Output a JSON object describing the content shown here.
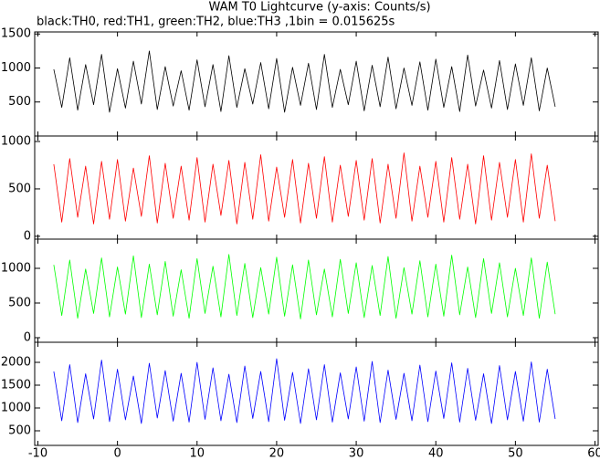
{
  "title": "WAM T0 Lightcurve (y-axis: Counts/s)",
  "subtitle": "black:TH0, red:TH1, green:TH2, blue:TH3 ,1bin = 0.015625s",
  "chart_data": [
    {
      "type": "line",
      "color": "#000000",
      "x": [
        -8,
        -7,
        -6,
        -5,
        -4,
        -3,
        -2,
        -1,
        0,
        1,
        2,
        3,
        4,
        5,
        6,
        7,
        8,
        9,
        10,
        11,
        12,
        13,
        14,
        15,
        16,
        17,
        18,
        19,
        20,
        21,
        22,
        23,
        24,
        25,
        26,
        27,
        28,
        29,
        30,
        31,
        32,
        33,
        34,
        35,
        36,
        37,
        38,
        39,
        40,
        41,
        42,
        43,
        44,
        45,
        46,
        47,
        48,
        49,
        50,
        51,
        52,
        53,
        54,
        55
      ],
      "values": [
        980,
        420,
        1150,
        380,
        1050,
        460,
        1200,
        350,
        990,
        410,
        1100,
        470,
        1250,
        390,
        1020,
        440,
        960,
        380,
        1120,
        430,
        1050,
        360,
        1180,
        420,
        990,
        470,
        1080,
        400,
        1140,
        350,
        1010,
        450,
        1070,
        390,
        1200,
        420,
        980,
        460,
        1100,
        370,
        1040,
        430,
        1160,
        400,
        1000,
        450,
        1090,
        380,
        1130,
        420,
        1020,
        360,
        1190,
        440,
        970,
        410,
        1110,
        390,
        1060,
        450,
        1150,
        370,
        1000,
        430
      ],
      "xlim": [
        -10.4,
        60.4
      ],
      "ylim": [
        0,
        1530
      ],
      "yticks": [
        500,
        1000,
        1500
      ]
    },
    {
      "type": "line",
      "color": "#ff0000",
      "x": [
        -8,
        -7,
        -6,
        -5,
        -4,
        -3,
        -2,
        -1,
        0,
        1,
        2,
        3,
        4,
        5,
        6,
        7,
        8,
        9,
        10,
        11,
        12,
        13,
        14,
        15,
        16,
        17,
        18,
        19,
        20,
        21,
        22,
        23,
        24,
        25,
        26,
        27,
        28,
        29,
        30,
        31,
        32,
        33,
        34,
        35,
        36,
        37,
        38,
        39,
        40,
        41,
        42,
        43,
        44,
        45,
        46,
        47,
        48,
        49,
        50,
        51,
        52,
        53,
        54,
        55
      ],
      "values": [
        760,
        150,
        820,
        200,
        740,
        130,
        790,
        180,
        810,
        160,
        720,
        210,
        850,
        140,
        770,
        190,
        740,
        170,
        830,
        150,
        760,
        220,
        800,
        130,
        780,
        180,
        860,
        160,
        730,
        200,
        810,
        140,
        770,
        190,
        840,
        150,
        750,
        210,
        800,
        170,
        820,
        140,
        760,
        190,
        880,
        160,
        740,
        200,
        790,
        150,
        830,
        180,
        760,
        130,
        850,
        170,
        780,
        200,
        810,
        150,
        870,
        190,
        750,
        160
      ],
      "xlim": [
        -10.4,
        60.4
      ],
      "ylim": [
        -30,
        1058
      ],
      "yticks": [
        0,
        500,
        1000
      ]
    },
    {
      "type": "line",
      "color": "#00ff00",
      "x": [
        -8,
        -7,
        -6,
        -5,
        -4,
        -3,
        -2,
        -1,
        0,
        1,
        2,
        3,
        4,
        5,
        6,
        7,
        8,
        9,
        10,
        11,
        12,
        13,
        14,
        15,
        16,
        17,
        18,
        19,
        20,
        21,
        22,
        23,
        24,
        25,
        26,
        27,
        28,
        29,
        30,
        31,
        32,
        33,
        34,
        35,
        36,
        37,
        38,
        39,
        40,
        41,
        42,
        43,
        44,
        45,
        46,
        47,
        48,
        49,
        50,
        51,
        52,
        53,
        54,
        55
      ],
      "values": [
        1050,
        320,
        1120,
        280,
        990,
        350,
        1150,
        300,
        1020,
        340,
        1180,
        290,
        1060,
        330,
        1100,
        310,
        980,
        280,
        1140,
        350,
        1030,
        300,
        1200,
        320,
        1070,
        290,
        1010,
        340,
        1160,
        310,
        1050,
        270,
        1120,
        330,
        990,
        300,
        1130,
        350,
        1080,
        290,
        1040,
        320,
        1170,
        280,
        1010,
        340,
        1110,
        300,
        1060,
        310,
        1190,
        330,
        1020,
        290,
        1140,
        350,
        1080,
        300,
        1000,
        320,
        1150,
        280,
        1090,
        340
      ],
      "xlim": [
        -10.4,
        60.4
      ],
      "ylim": [
        -66,
        1421
      ],
      "yticks": [
        0,
        500,
        1000
      ]
    },
    {
      "type": "line",
      "color": "#0000ff",
      "x": [
        -8,
        -7,
        -6,
        -5,
        -4,
        -3,
        -2,
        -1,
        0,
        1,
        2,
        3,
        4,
        5,
        6,
        7,
        8,
        9,
        10,
        11,
        12,
        13,
        14,
        15,
        16,
        17,
        18,
        19,
        20,
        21,
        22,
        23,
        24,
        25,
        26,
        27,
        28,
        29,
        30,
        31,
        32,
        33,
        34,
        35,
        36,
        37,
        38,
        39,
        40,
        41,
        42,
        43,
        44,
        45,
        46,
        47,
        48,
        49,
        50,
        51,
        52,
        53,
        54,
        55
      ],
      "values": [
        1800,
        720,
        1950,
        680,
        1750,
        760,
        2050,
        700,
        1850,
        740,
        1700,
        660,
        1980,
        780,
        1820,
        710,
        1760,
        690,
        2000,
        750,
        1880,
        720,
        1740,
        680,
        1920,
        770,
        1800,
        700,
        2080,
        730,
        1780,
        660,
        1860,
        740,
        1950,
        690,
        1770,
        760,
        1900,
        710,
        2020,
        680,
        1830,
        750,
        1760,
        720,
        1940,
        700,
        1810,
        770,
        1990,
        690,
        1870,
        730,
        1750,
        660,
        1930,
        740,
        1800,
        710,
        2010,
        690,
        1850,
        760
      ],
      "xlim": [
        -10.4,
        60.4
      ],
      "ylim": [
        180,
        2440
      ],
      "yticks": [
        500,
        1000,
        1500,
        2000
      ],
      "xticks": [
        -10,
        0,
        10,
        20,
        30,
        40,
        50,
        60
      ]
    }
  ]
}
